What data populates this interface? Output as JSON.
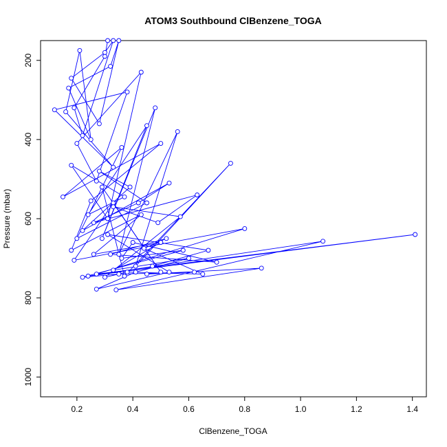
{
  "chart_data": {
    "type": "line",
    "title": "ATOM3 Southbound ClBenzene_TOGA",
    "xlabel": "ClBenzene_TOGA",
    "ylabel": "Pressure (mbar)",
    "xlim": [
      0.07,
      1.45
    ],
    "ylim": [
      1050,
      150
    ],
    "y_axis_reversed": true,
    "x_ticks": [
      0.2,
      0.4,
      0.6,
      0.8,
      1.0,
      1.2,
      1.4
    ],
    "x_tick_labels": [
      "0.2",
      "0.4",
      "0.6",
      "0.8",
      "1.0",
      "1.2",
      "1.4"
    ],
    "y_ticks": [
      200,
      400,
      600,
      800,
      1000
    ],
    "y_tick_labels": [
      "200",
      "400",
      "600",
      "800",
      "1000"
    ],
    "grid": false,
    "legend": "none",
    "marker": "open-circle",
    "series_color": "#0000ff",
    "series": [
      {
        "values": [
          [
            0.31,
            150
          ],
          [
            0.3,
            190
          ],
          [
            0.19,
            320
          ],
          [
            0.22,
            390
          ],
          [
            0.33,
            150
          ],
          [
            0.3,
            180
          ],
          [
            0.18,
            245
          ],
          [
            0.28,
            360
          ],
          [
            0.35,
            150
          ],
          [
            0.32,
            215
          ],
          [
            0.17,
            270
          ],
          [
            0.25,
            400
          ],
          [
            0.21,
            175
          ],
          [
            0.16,
            330
          ],
          [
            0.33,
            470
          ],
          [
            0.12,
            325
          ],
          [
            0.38,
            280
          ],
          [
            0.27,
            505
          ],
          [
            0.2,
            410
          ],
          [
            0.43,
            230
          ],
          [
            0.31,
            600
          ],
          [
            0.18,
            465
          ],
          [
            0.37,
            545
          ],
          [
            0.24,
            590
          ],
          [
            0.45,
            365
          ],
          [
            0.29,
            650
          ],
          [
            0.48,
            320
          ],
          [
            0.35,
            690
          ],
          [
            0.56,
            380
          ],
          [
            0.41,
            720
          ],
          [
            0.75,
            460
          ],
          [
            0.37,
            745
          ],
          [
            0.29,
            520
          ],
          [
            0.5,
            735
          ],
          [
            0.33,
            560
          ],
          [
            0.19,
            705
          ],
          [
            0.8,
            625
          ],
          [
            0.27,
            740
          ],
          [
            1.41,
            640
          ],
          [
            0.24,
            745
          ],
          [
            1.08,
            657
          ],
          [
            0.34,
            780
          ],
          [
            0.86,
            725
          ],
          [
            0.45,
            740
          ],
          [
            0.62,
            735
          ],
          [
            0.35,
            740
          ],
          [
            0.22,
            748
          ],
          [
            0.58,
            680
          ],
          [
            0.36,
            700
          ],
          [
            0.4,
            660
          ],
          [
            0.7,
            710
          ],
          [
            0.32,
            690
          ],
          [
            0.52,
            650
          ],
          [
            0.44,
            675
          ],
          [
            0.65,
            740
          ],
          [
            0.38,
            735
          ],
          [
            0.3,
            748
          ],
          [
            0.57,
            595
          ],
          [
            0.33,
            570
          ],
          [
            0.49,
            610
          ],
          [
            0.63,
            540
          ],
          [
            0.26,
            610
          ],
          [
            0.42,
            560
          ],
          [
            0.53,
            510
          ],
          [
            0.22,
            630
          ],
          [
            0.39,
            520
          ],
          [
            0.28,
            480
          ],
          [
            0.45,
            560
          ],
          [
            0.2,
            650
          ],
          [
            0.36,
            420
          ],
          [
            0.15,
            545
          ],
          [
            0.5,
            410
          ],
          [
            0.25,
            555
          ],
          [
            0.18,
            680
          ],
          [
            0.43,
            590
          ],
          [
            0.26,
            690
          ],
          [
            0.5,
            660
          ],
          [
            0.33,
            730
          ],
          [
            0.6,
            700
          ],
          [
            0.41,
            735
          ],
          [
            0.27,
            778
          ],
          [
            0.53,
            735
          ],
          [
            0.31,
            640
          ],
          [
            0.67,
            680
          ],
          [
            0.47,
            720
          ]
        ]
      }
    ]
  }
}
